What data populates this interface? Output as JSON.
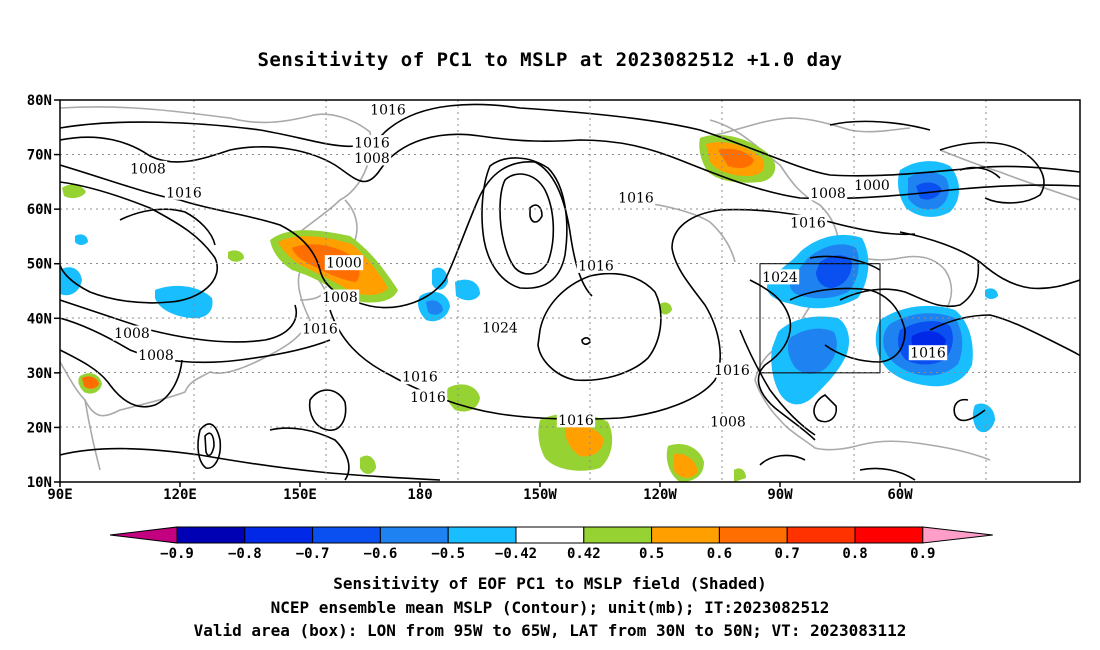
{
  "title": "Sensitivity of PC1 to MSLP at 2023082512 +1.0 day",
  "lat_labels": [
    "80N",
    "70N",
    "60N",
    "50N",
    "40N",
    "30N",
    "20N",
    "10N"
  ],
  "lon_labels": [
    "90E",
    "120E",
    "150E",
    "180",
    "150W",
    "120W",
    "90W",
    "60W"
  ],
  "colorbar": {
    "labels": [
      "-0.9",
      "-0.8",
      "-0.7",
      "-0.6",
      "-0.5",
      "-0.42",
      "0.42",
      "0.5",
      "0.6",
      "0.7",
      "0.8",
      "0.9"
    ],
    "colors": [
      "#c3007f",
      "#0000b4",
      "#0028e6",
      "#0a50f0",
      "#1e82f0",
      "#19beff",
      "#ffffff",
      "#96d232",
      "#ffa000",
      "#ff6e00",
      "#ff3200",
      "#ff0000",
      "#ff9ec8"
    ]
  },
  "captions": {
    "line1": "Sensitivity of EOF PC1 to MSLP field (Shaded)",
    "line2": "NCEP ensemble mean MSLP (Contour); unit(mb); IT:2023082512",
    "line3": "Valid area (box): LON from 95W to 65W, LAT from 30N to 50N; VT: 2023083112"
  },
  "contour_labels": [
    {
      "text": "1016",
      "lon": 172,
      "lat": 78.2
    },
    {
      "text": "1016",
      "lon": 168,
      "lat": 72.1
    },
    {
      "text": "1008",
      "lon": 168,
      "lat": 69.3
    },
    {
      "text": "1008",
      "lon": 112,
      "lat": 67.4
    },
    {
      "text": "1016",
      "lon": 121,
      "lat": 63.0
    },
    {
      "text": "1016",
      "lon": -126,
      "lat": 62.0
    },
    {
      "text": "1008",
      "lon": -78,
      "lat": 62.9
    },
    {
      "text": "1000",
      "lon": -67,
      "lat": 64.3
    },
    {
      "text": "1016",
      "lon": -83,
      "lat": 57.5
    },
    {
      "text": "1000",
      "lon": 161,
      "lat": 50.1
    },
    {
      "text": "1016",
      "lon": -136,
      "lat": 49.6
    },
    {
      "text": "1008",
      "lon": 160,
      "lat": 43.8
    },
    {
      "text": "1024",
      "lon": -90,
      "lat": 47.5
    },
    {
      "text": "1016",
      "lon": 155,
      "lat": 38.0
    },
    {
      "text": "1024",
      "lon": -160,
      "lat": 38.2
    },
    {
      "text": "1008",
      "lon": 108,
      "lat": 37.2
    },
    {
      "text": "1008",
      "lon": 114,
      "lat": 33.2
    },
    {
      "text": "1016",
      "lon": -53,
      "lat": 33.6
    },
    {
      "text": "1016",
      "lon": -102,
      "lat": 30.4
    },
    {
      "text": "1016",
      "lon": -180,
      "lat": 29.2
    },
    {
      "text": "1016",
      "lon": -178,
      "lat": 25.5
    },
    {
      "text": "1008",
      "lon": -103,
      "lat": 21.0
    },
    {
      "text": "1016",
      "lon": -141,
      "lat": 21.3
    }
  ],
  "valid_box": {
    "lon_min": -95,
    "lon_max": -65,
    "lat_min": 30,
    "lat_max": 50
  }
}
